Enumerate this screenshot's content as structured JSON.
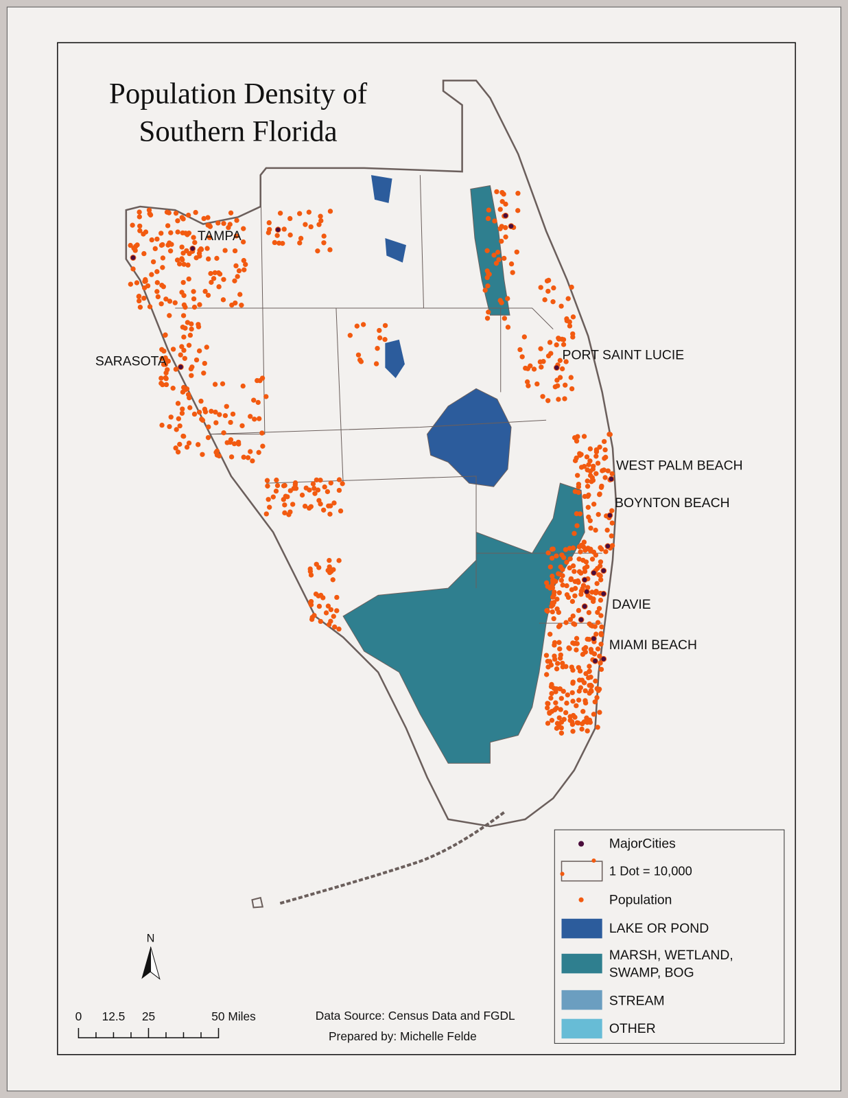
{
  "title": {
    "lines": [
      "Population Density of",
      "Southern Florida"
    ]
  },
  "cities": [
    {
      "label": "TAMPA"
    },
    {
      "label": "SARASOTA"
    },
    {
      "label": "PORT SAINT LUCIE"
    },
    {
      "label": "WEST PALM BEACH"
    },
    {
      "label": "BOYNTON BEACH"
    },
    {
      "label": "DAVIE"
    },
    {
      "label": "MIAMI BEACH"
    }
  ],
  "legend": {
    "items": [
      {
        "label": "MajorCities"
      },
      {
        "label": "1 Dot = 10,000"
      },
      {
        "label": "Population"
      },
      {
        "label": "LAKE OR POND",
        "color": "#2c5c9c"
      },
      {
        "label_lines": [
          "MARSH, WETLAND,",
          "SWAMP, BOG"
        ],
        "color": "#2f7f8f"
      },
      {
        "label": "STREAM",
        "color": "#6b9ec0"
      },
      {
        "label": "OTHER",
        "color": "#67bcd6"
      }
    ]
  },
  "north_arrow": {
    "label": "N"
  },
  "scale_bar": {
    "labels": [
      "0",
      "12.5",
      "25",
      "50 Miles"
    ]
  },
  "credits": {
    "source": "Data Source: Census Data and FGDL",
    "prepared_by": "Prepared by: Michelle Felde"
  }
}
